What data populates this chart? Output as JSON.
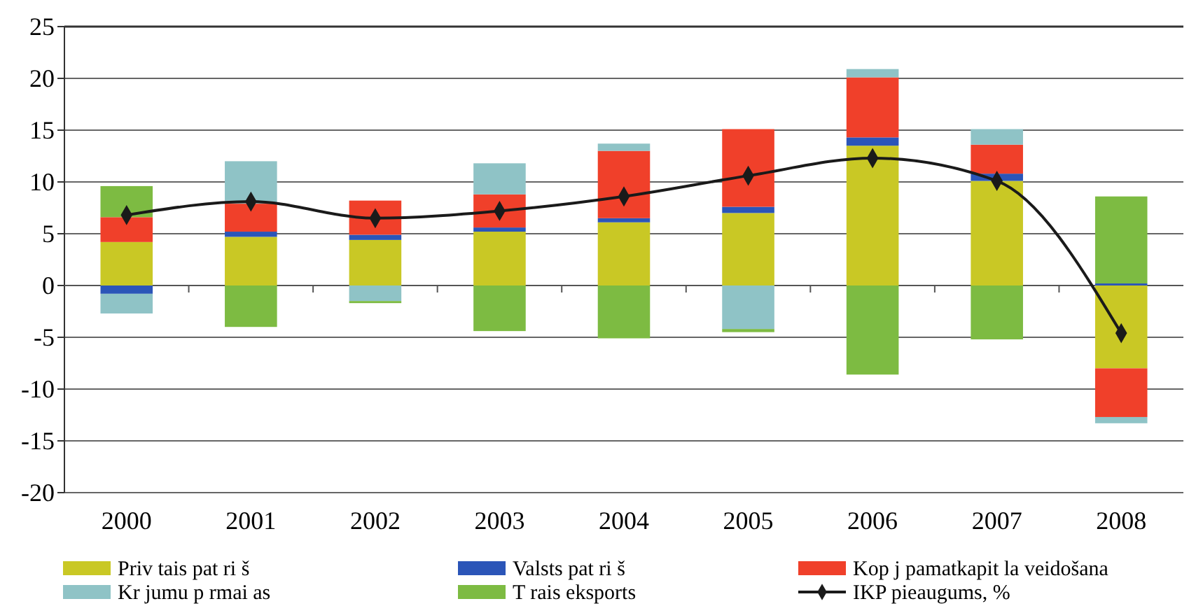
{
  "chart_data": {
    "type": "bar",
    "stacked": true,
    "categories": [
      "2000",
      "2001",
      "2002",
      "2003",
      "2004",
      "2005",
      "2006",
      "2007",
      "2008"
    ],
    "series": [
      {
        "name": "Priv tais pat ri š",
        "color": "#c9c825",
        "values": [
          4.2,
          4.7,
          4.4,
          5.2,
          6.1,
          7.0,
          13.5,
          10.1,
          -8.0
        ]
      },
      {
        "name": "Valsts pat ri š",
        "color": "#2b55b8",
        "values": [
          -0.8,
          0.5,
          0.5,
          0.4,
          0.4,
          0.6,
          0.8,
          0.7,
          0.2
        ]
      },
      {
        "name": "Kop j pamatkapit la veidošana",
        "color": "#f0402a",
        "values": [
          2.4,
          2.7,
          3.3,
          3.2,
          6.5,
          7.5,
          5.8,
          2.8,
          -4.7
        ]
      },
      {
        "name": "Kr jumu p rmai as",
        "color": "#8fc3c6",
        "values": [
          -1.9,
          4.1,
          -1.5,
          3.0,
          0.7,
          -4.2,
          0.8,
          1.5,
          -0.6
        ]
      },
      {
        "name": "T rais eksports",
        "color": "#7dbb42",
        "values": [
          3.0,
          -4.0,
          -0.2,
          -4.4,
          -5.1,
          -0.3,
          -8.6,
          -5.2,
          8.4
        ]
      },
      {
        "name": "IKP pieaugums, %",
        "type": "line",
        "color": "#1a1a1a",
        "marker": "diamond",
        "values": [
          6.8,
          8.1,
          6.5,
          7.2,
          8.6,
          10.6,
          12.3,
          10.1,
          -4.6
        ]
      }
    ],
    "ylim": [
      -20,
      25
    ],
    "yticks": [
      -20,
      -15,
      -10,
      -5,
      0,
      5,
      10,
      15,
      20,
      25
    ],
    "grid": "y",
    "legend": "bottom"
  }
}
